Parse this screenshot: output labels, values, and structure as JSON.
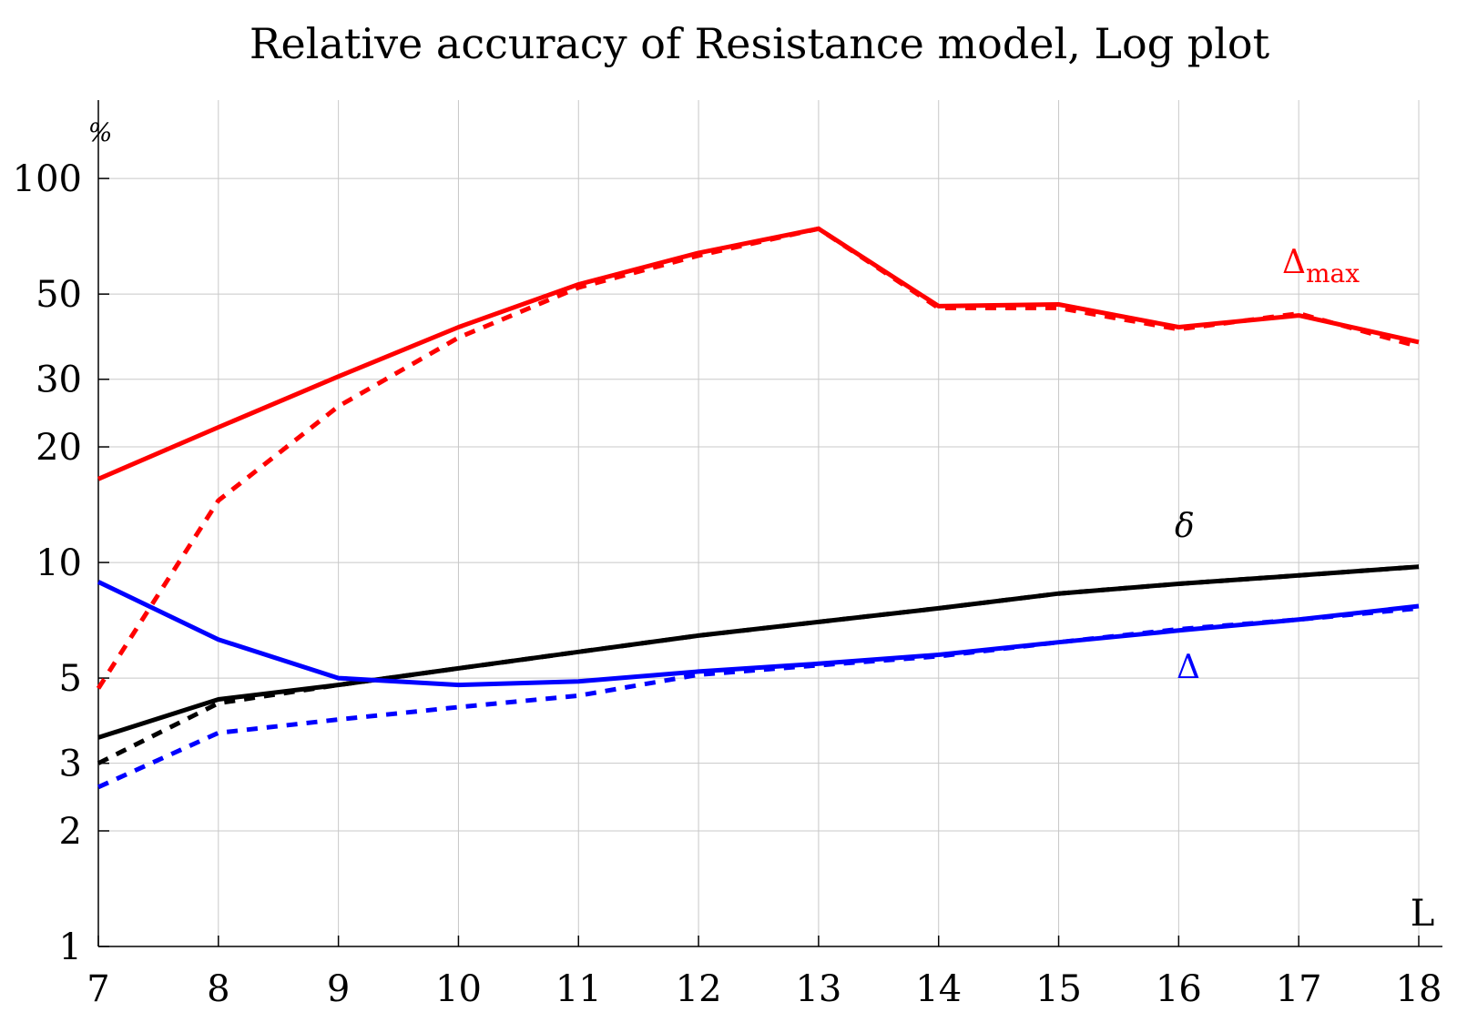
{
  "chart_data": {
    "type": "line",
    "title": "Relative accuracy of Resistance model, Log plot",
    "xlabel": "L",
    "ylabel": "%",
    "y_scale": "log",
    "xlim": [
      7,
      18
    ],
    "ylim": [
      1,
      160
    ],
    "grid": true,
    "x": [
      7,
      8,
      9,
      10,
      11,
      12,
      13,
      14,
      15,
      16,
      17,
      18
    ],
    "x_ticks": [
      "7",
      "8",
      "9",
      "10",
      "11",
      "12",
      "13",
      "14",
      "15",
      "16",
      "17",
      "18"
    ],
    "y_ticks": [
      1,
      2,
      3,
      5,
      10,
      20,
      30,
      50,
      100
    ],
    "y_tick_labels": [
      "1",
      "2",
      "3",
      "5",
      "10",
      "20",
      "30",
      "50",
      "100"
    ],
    "series": [
      {
        "label": "Δmax",
        "label_main": "Δ",
        "label_sub": "max",
        "color": "#ff0000",
        "style": "solid",
        "values": [
          16.5,
          22.5,
          30.5,
          41,
          53,
          64,
          74,
          46.5,
          47,
          41,
          44,
          37.5
        ]
      },
      {
        "color": "#ff0000",
        "style": "dashed",
        "values": [
          4.7,
          14.5,
          25.5,
          38.5,
          52,
          63,
          74,
          46,
          46,
          40.5,
          44.5,
          36.5
        ]
      },
      {
        "label": "δ",
        "label_main": "δ",
        "color": "#000000",
        "style": "solid",
        "values": [
          3.5,
          4.4,
          4.8,
          5.3,
          5.85,
          6.45,
          7.0,
          7.6,
          8.3,
          8.8,
          9.25,
          9.75
        ]
      },
      {
        "color": "#000000",
        "style": "dashed",
        "values": [
          3.0,
          4.3,
          4.8,
          5.3,
          5.85,
          6.45,
          7.0,
          7.6,
          8.3,
          8.8,
          9.25,
          9.75
        ]
      },
      {
        "label": "Δ",
        "label_main": "Δ",
        "color": "#0000ff",
        "style": "solid",
        "values": [
          8.9,
          6.3,
          5.0,
          4.8,
          4.9,
          5.2,
          5.45,
          5.75,
          6.2,
          6.65,
          7.1,
          7.7
        ]
      },
      {
        "color": "#0000ff",
        "style": "dashed",
        "values": [
          2.6,
          3.6,
          3.9,
          4.2,
          4.5,
          5.1,
          5.4,
          5.7,
          6.2,
          6.7,
          7.1,
          7.6
        ]
      }
    ]
  }
}
